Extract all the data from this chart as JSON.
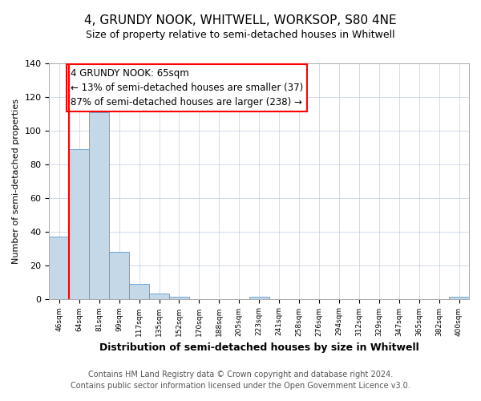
{
  "title": "4, GRUNDY NOOK, WHITWELL, WORKSOP, S80 4NE",
  "subtitle": "Size of property relative to semi-detached houses in Whitwell",
  "xlabel": "Distribution of semi-detached houses by size in Whitwell",
  "ylabel": "Number of semi-detached properties",
  "bin_labels": [
    "46sqm",
    "64sqm",
    "81sqm",
    "99sqm",
    "117sqm",
    "135sqm",
    "152sqm",
    "170sqm",
    "188sqm",
    "205sqm",
    "223sqm",
    "241sqm",
    "258sqm",
    "276sqm",
    "294sqm",
    "312sqm",
    "329sqm",
    "347sqm",
    "365sqm",
    "382sqm",
    "400sqm"
  ],
  "bar_heights": [
    37,
    89,
    111,
    28,
    9,
    3,
    1,
    0,
    0,
    0,
    1,
    0,
    0,
    0,
    0,
    0,
    0,
    0,
    0,
    0,
    1
  ],
  "bar_color": "#c5d8e8",
  "bar_edge_color": "#5b9bd5",
  "highlight_line_color": "red",
  "annotation_line1": "4 GRUNDY NOOK: 65sqm",
  "annotation_line2": "← 13% of semi-detached houses are smaller (37)",
  "annotation_line3": "87% of semi-detached houses are larger (238) →",
  "annotation_box_color": "white",
  "annotation_box_edge_color": "red",
  "ylim": [
    0,
    140
  ],
  "yticks": [
    0,
    20,
    40,
    60,
    80,
    100,
    120,
    140
  ],
  "footer_line1": "Contains HM Land Registry data © Crown copyright and database right 2024.",
  "footer_line2": "Contains public sector information licensed under the Open Government Licence v3.0.",
  "title_fontsize": 11,
  "subtitle_fontsize": 9,
  "annotation_fontsize": 8.5,
  "xlabel_fontsize": 9,
  "ylabel_fontsize": 8,
  "footer_fontsize": 7
}
